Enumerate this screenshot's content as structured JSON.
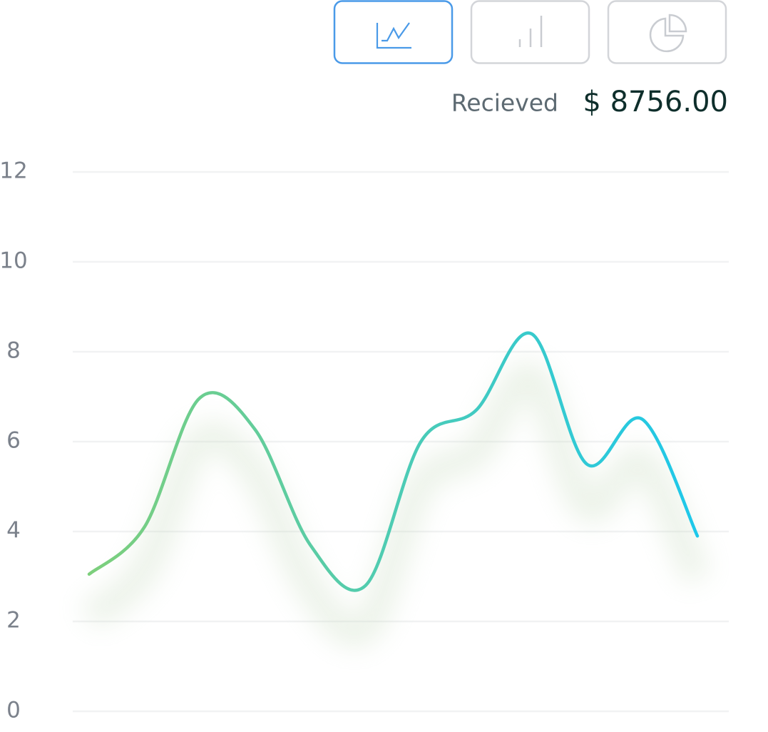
{
  "chart_data": {
    "type": "line",
    "summary_label": "Recieved",
    "amount": "$ 8756.00",
    "categories": [
      null,
      null,
      null,
      null,
      null,
      null,
      null,
      null,
      null,
      null,
      null,
      null
    ],
    "series": [
      {
        "name": null,
        "color": "#7dcf7c",
        "color_end": "#1ec8ea",
        "values": [
          3.05,
          4.1,
          6.97,
          6.27,
          3.7,
          2.8,
          6.0,
          6.7,
          8.4,
          5.5,
          6.5,
          3.9
        ]
      }
    ],
    "ylim": [
      0,
      12
    ],
    "yticks": [
      0,
      2,
      4,
      6,
      8,
      10,
      12
    ],
    "grid": true
  }
}
